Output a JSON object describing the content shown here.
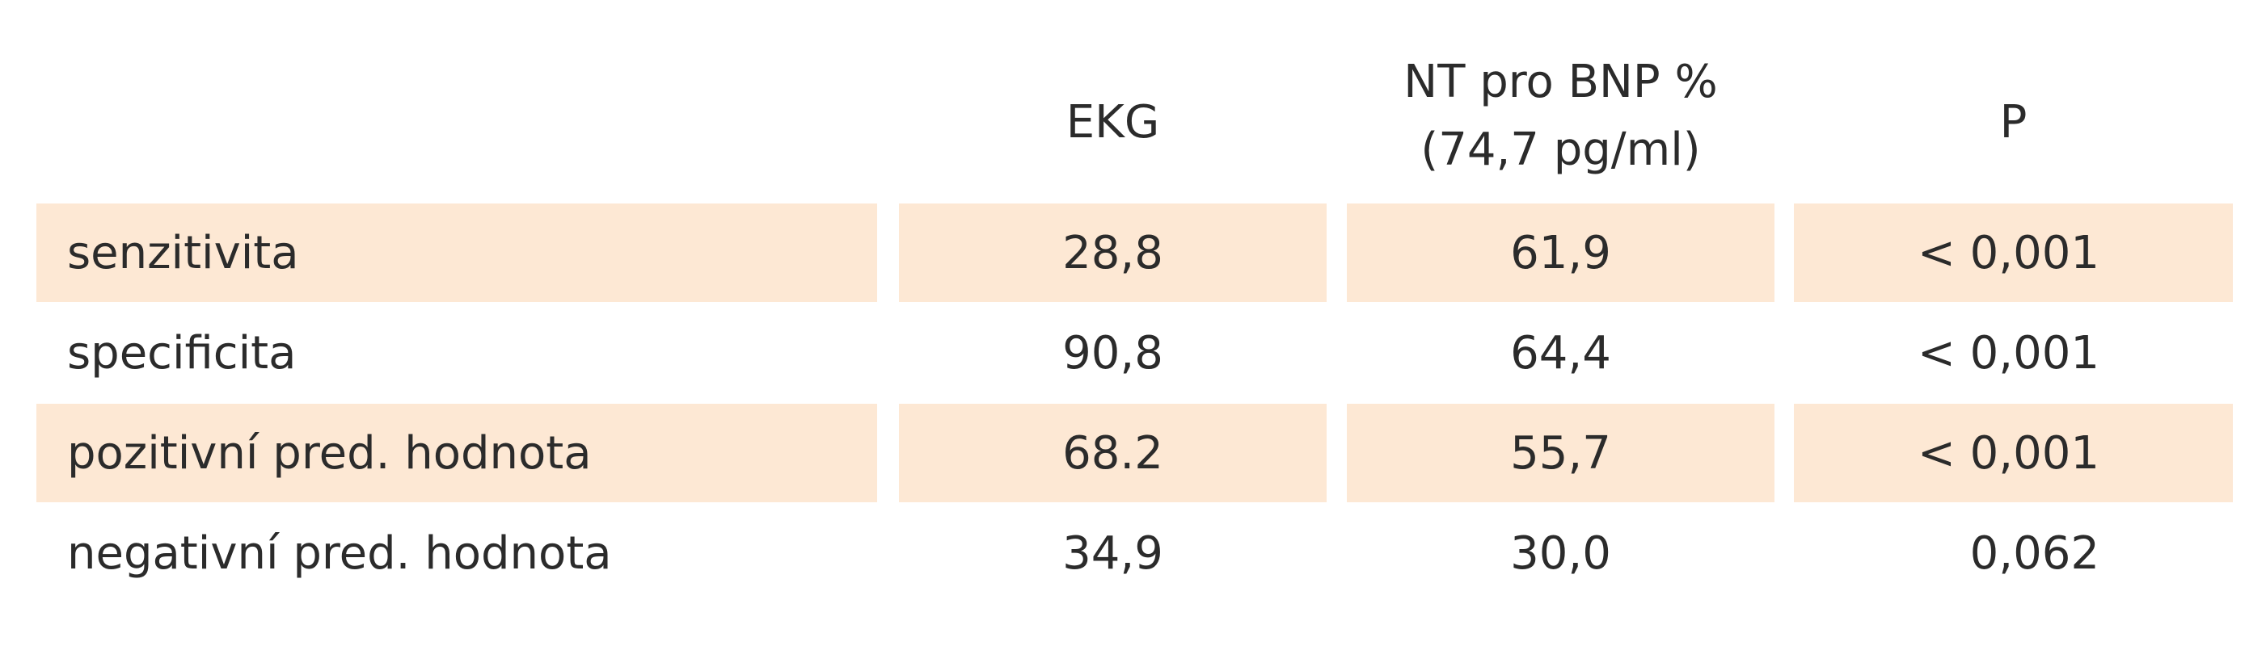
{
  "table": {
    "columns": [
      [
        "EKG"
      ],
      [
        "NT pro BNP %",
        "(74,7 pg/ml)"
      ],
      [
        "P"
      ]
    ],
    "rows": [
      [
        "senzitivita",
        "28,8",
        "61,9",
        "< 0,001"
      ],
      [
        "specificita",
        "90,8",
        "64,4",
        "< 0,001"
      ],
      [
        "pozitivní pred. hodnota",
        "68.2",
        "55,7",
        "< 0,001"
      ],
      [
        "negativní pred. hodnota",
        "34,9",
        "30,0",
        "0,062"
      ]
    ]
  }
}
